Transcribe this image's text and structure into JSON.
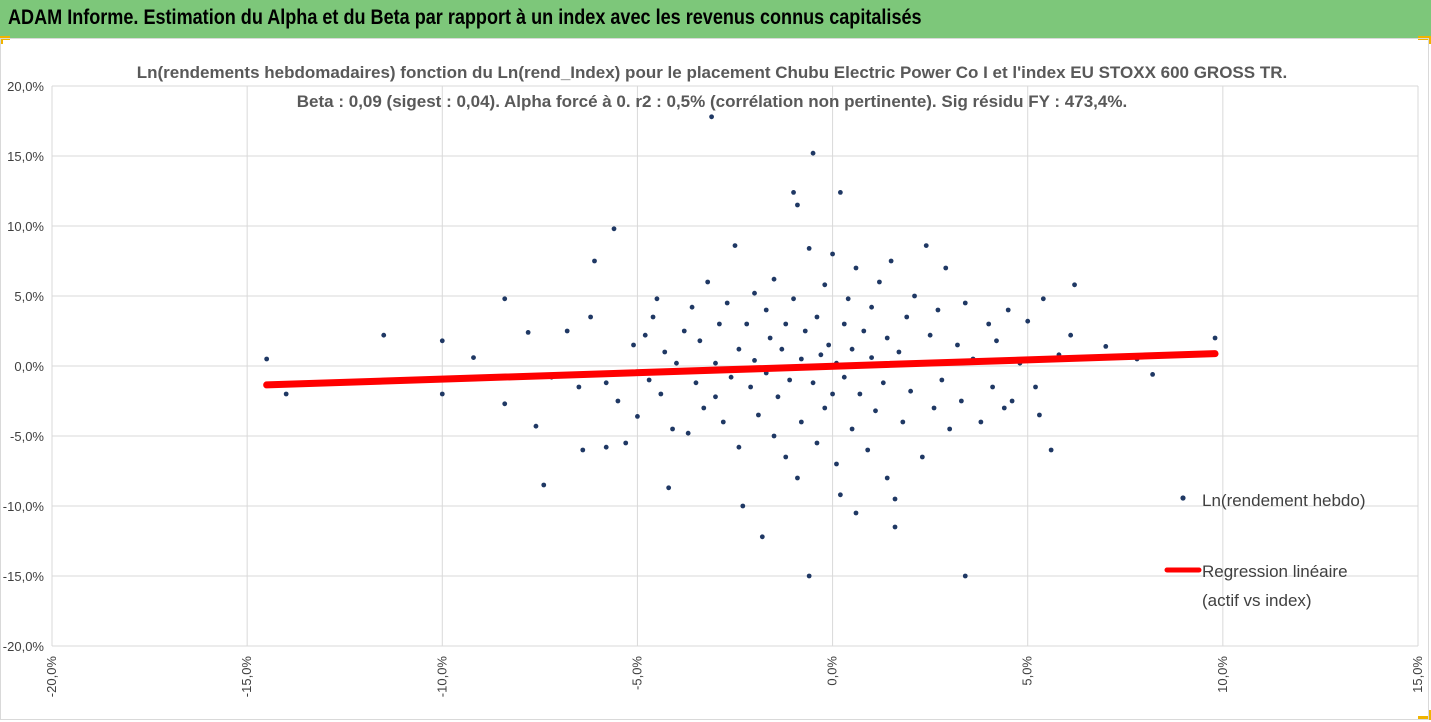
{
  "header": {
    "title": "ADAM Informe. Estimation du Alpha et du Beta par rapport à un index avec les revenus connus capitalisés",
    "background": "#7dc77a",
    "corner_color": "#f0b400"
  },
  "chart_data": {
    "type": "scatter",
    "title": "Ln(rendements hebdomadaires) fonction du Ln(rend_Index) pour le placement Chubu Electric Power Co I et l'index EU STOXX 600 GROSS TR.",
    "subtitle": "Beta : 0,09 (sigest : 0,04).  Alpha forcé à 0. r2 : 0,5% (corrélation non pertinente). Sig résidu FY : 473,4%.",
    "xlabel": "",
    "ylabel": "",
    "xlim": [
      -0.2,
      0.15
    ],
    "ylim": [
      -0.2,
      0.2
    ],
    "x_ticks": [
      -0.2,
      -0.15,
      -0.1,
      -0.05,
      0.0,
      0.05,
      0.1,
      0.15
    ],
    "x_tick_labels": [
      "-20,0%",
      "-15,0%",
      "-10,0%",
      "-5,0%",
      "0,0%",
      "5,0%",
      "10,0%",
      "15,0%"
    ],
    "y_ticks": [
      0.2,
      0.15,
      0.1,
      0.05,
      0.0,
      -0.05,
      -0.1,
      -0.15,
      -0.2
    ],
    "y_tick_labels": [
      "20,0%",
      "15,0%",
      "10,0%",
      "5,0%",
      "0,0%",
      "-5,0%",
      "-10,0%",
      "-15,0%",
      "-20,0%"
    ],
    "grid": true,
    "legend_position": "right",
    "colors": {
      "scatter": "#1f3864",
      "regression": "#ff0000",
      "grid": "#d9d9d9"
    },
    "series": [
      {
        "name": "Ln(rendement hebdo)",
        "kind": "scatter",
        "points": [
          [
            -0.145,
            0.005
          ],
          [
            -0.14,
            -0.02
          ],
          [
            -0.115,
            0.022
          ],
          [
            -0.1,
            0.018
          ],
          [
            -0.1,
            -0.02
          ],
          [
            -0.092,
            0.006
          ],
          [
            -0.084,
            0.048
          ],
          [
            -0.084,
            -0.027
          ],
          [
            -0.078,
            0.024
          ],
          [
            -0.076,
            -0.043
          ],
          [
            -0.074,
            -0.085
          ],
          [
            -0.072,
            -0.008
          ],
          [
            -0.068,
            0.025
          ],
          [
            -0.065,
            -0.015
          ],
          [
            -0.064,
            -0.06
          ],
          [
            -0.062,
            0.035
          ],
          [
            -0.061,
            0.075
          ],
          [
            -0.058,
            -0.058
          ],
          [
            -0.058,
            -0.012
          ],
          [
            -0.056,
            0.098
          ],
          [
            -0.055,
            -0.025
          ],
          [
            -0.053,
            -0.055
          ],
          [
            -0.051,
            0.015
          ],
          [
            -0.05,
            -0.036
          ],
          [
            -0.048,
            0.022
          ],
          [
            -0.047,
            -0.01
          ],
          [
            -0.046,
            0.035
          ],
          [
            -0.045,
            0.048
          ],
          [
            -0.044,
            -0.02
          ],
          [
            -0.043,
            0.01
          ],
          [
            -0.042,
            -0.087
          ],
          [
            -0.041,
            -0.045
          ],
          [
            -0.04,
            0.002
          ],
          [
            -0.038,
            0.025
          ],
          [
            -0.037,
            -0.048
          ],
          [
            -0.036,
            0.042
          ],
          [
            -0.035,
            -0.012
          ],
          [
            -0.034,
            0.018
          ],
          [
            -0.033,
            -0.03
          ],
          [
            -0.032,
            0.06
          ],
          [
            -0.031,
            0.178
          ],
          [
            -0.03,
            0.002
          ],
          [
            -0.03,
            -0.022
          ],
          [
            -0.029,
            0.03
          ],
          [
            -0.028,
            -0.04
          ],
          [
            -0.027,
            0.045
          ],
          [
            -0.026,
            -0.008
          ],
          [
            -0.025,
            0.086
          ],
          [
            -0.024,
            0.012
          ],
          [
            -0.024,
            -0.058
          ],
          [
            -0.023,
            -0.1
          ],
          [
            -0.022,
            0.03
          ],
          [
            -0.021,
            -0.015
          ],
          [
            -0.02,
            0.052
          ],
          [
            -0.02,
            0.004
          ],
          [
            -0.019,
            -0.035
          ],
          [
            -0.018,
            -0.122
          ],
          [
            -0.017,
            0.04
          ],
          [
            -0.017,
            -0.005
          ],
          [
            -0.016,
            0.02
          ],
          [
            -0.015,
            -0.05
          ],
          [
            -0.015,
            0.062
          ],
          [
            -0.014,
            -0.022
          ],
          [
            -0.013,
            0.012
          ],
          [
            -0.012,
            -0.065
          ],
          [
            -0.012,
            0.03
          ],
          [
            -0.011,
            -0.01
          ],
          [
            -0.01,
            0.048
          ],
          [
            -0.01,
            0.124
          ],
          [
            -0.009,
            -0.08
          ],
          [
            -0.009,
            0.115
          ],
          [
            -0.008,
            0.005
          ],
          [
            -0.008,
            -0.04
          ],
          [
            -0.007,
            0.025
          ],
          [
            -0.006,
            0.084
          ],
          [
            -0.006,
            -0.15
          ],
          [
            -0.005,
            -0.012
          ],
          [
            -0.005,
            0.152
          ],
          [
            -0.004,
            0.035
          ],
          [
            -0.004,
            -0.055
          ],
          [
            -0.003,
            0.008
          ],
          [
            -0.002,
            -0.03
          ],
          [
            -0.002,
            0.058
          ],
          [
            -0.001,
            0.015
          ],
          [
            0.0,
            -0.02
          ],
          [
            0.0,
            0.08
          ],
          [
            0.001,
            0.002
          ],
          [
            0.001,
            -0.07
          ],
          [
            0.002,
            0.124
          ],
          [
            0.002,
            -0.092
          ],
          [
            0.003,
            0.03
          ],
          [
            0.003,
            -0.008
          ],
          [
            0.004,
            0.048
          ],
          [
            0.005,
            -0.045
          ],
          [
            0.005,
            0.012
          ],
          [
            0.006,
            -0.105
          ],
          [
            0.006,
            0.07
          ],
          [
            0.007,
            -0.02
          ],
          [
            0.008,
            0.025
          ],
          [
            0.009,
            -0.06
          ],
          [
            0.01,
            0.006
          ],
          [
            0.01,
            0.042
          ],
          [
            0.011,
            -0.032
          ],
          [
            0.012,
            0.06
          ],
          [
            0.013,
            -0.012
          ],
          [
            0.014,
            0.02
          ],
          [
            0.014,
            -0.08
          ],
          [
            0.015,
            0.075
          ],
          [
            0.016,
            -0.115
          ],
          [
            0.016,
            -0.095
          ],
          [
            0.017,
            0.01
          ],
          [
            0.018,
            -0.04
          ],
          [
            0.019,
            0.035
          ],
          [
            0.02,
            -0.018
          ],
          [
            0.021,
            0.05
          ],
          [
            0.022,
            0.002
          ],
          [
            0.023,
            -0.065
          ],
          [
            0.024,
            0.086
          ],
          [
            0.025,
            0.022
          ],
          [
            0.026,
            -0.03
          ],
          [
            0.027,
            0.04
          ],
          [
            0.028,
            -0.01
          ],
          [
            0.029,
            0.07
          ],
          [
            0.03,
            -0.045
          ],
          [
            0.032,
            0.015
          ],
          [
            0.033,
            -0.025
          ],
          [
            0.034,
            0.045
          ],
          [
            0.034,
            -0.15
          ],
          [
            0.036,
            0.005
          ],
          [
            0.038,
            -0.04
          ],
          [
            0.04,
            0.03
          ],
          [
            0.041,
            -0.015
          ],
          [
            0.042,
            0.018
          ],
          [
            0.044,
            -0.03
          ],
          [
            0.045,
            0.04
          ],
          [
            0.046,
            -0.025
          ],
          [
            0.048,
            0.002
          ],
          [
            0.05,
            0.032
          ],
          [
            0.052,
            -0.015
          ],
          [
            0.053,
            -0.035
          ],
          [
            0.054,
            0.048
          ],
          [
            0.056,
            -0.06
          ],
          [
            0.058,
            0.008
          ],
          [
            0.061,
            0.022
          ],
          [
            0.062,
            0.058
          ],
          [
            0.07,
            0.014
          ],
          [
            0.078,
            0.005
          ],
          [
            0.082,
            -0.006
          ],
          [
            0.098,
            0.02
          ]
        ]
      },
      {
        "name": "Regression linéaire\n(actif vs index)",
        "legend_lines": [
          "Regression linéaire",
          "(actif vs index)"
        ],
        "kind": "line",
        "points": [
          [
            -0.145,
            -0.0135
          ],
          [
            0.098,
            0.0088
          ]
        ]
      }
    ]
  }
}
